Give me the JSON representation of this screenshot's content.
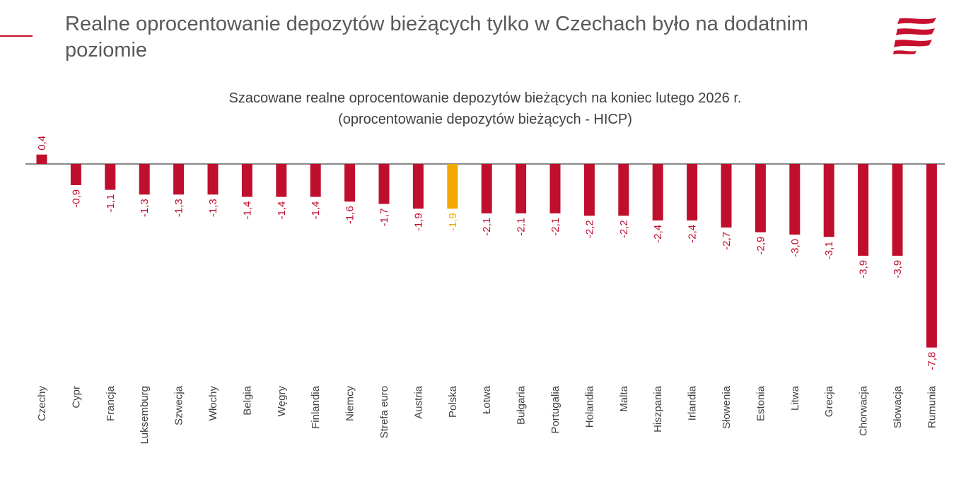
{
  "page": {
    "title": "Realne oprocentowanie depozytów bieżących tylko w Czechach było na dodatnim poziomie"
  },
  "colors": {
    "accent": "#c8102e",
    "bar": "#c00f2d",
    "highlight": "#f2a900",
    "text": "#595959"
  },
  "logo": {
    "icon": "stylized-flag-logo-icon"
  },
  "chart_data": {
    "type": "bar",
    "title": "Szacowane realne oprocentowanie depozytów bieżących na koniec lutego 2026 r.",
    "subtitle": "(oprocentowanie depozytów bieżących - HICP)",
    "categories": [
      "Czechy",
      "Cypr",
      "Francja",
      "Luksemburg",
      "Szwecja",
      "Włochy",
      "Belgia",
      "Węgry",
      "Finlandia",
      "Niemcy",
      "Strefa euro",
      "Austria",
      "Polska",
      "Łotwa",
      "Bułgaria",
      "Portugalia",
      "Holandia",
      "Malta",
      "Hiszpania",
      "Irlandia",
      "Słowenia",
      "Estonia",
      "Litwa",
      "Grecja",
      "Chorwacja",
      "Słowacja",
      "Rumunia"
    ],
    "values": [
      0.4,
      -0.9,
      -1.1,
      -1.3,
      -1.3,
      -1.3,
      -1.4,
      -1.4,
      -1.4,
      -1.6,
      -1.7,
      -1.9,
      -1.9,
      -2.1,
      -2.1,
      -2.1,
      -2.2,
      -2.2,
      -2.4,
      -2.4,
      -2.7,
      -2.9,
      -3.0,
      -3.1,
      -3.9,
      -3.9,
      -7.8
    ],
    "labels": [
      "0,4",
      "-0,9",
      "-1,1",
      "-1,3",
      "-1,3",
      "-1,3",
      "-1,4",
      "-1,4",
      "-1,4",
      "-1,6",
      "-1,7",
      "-1,9",
      "-1,9",
      "-2,1",
      "-2,1",
      "-2,1",
      "-2,2",
      "-2,2",
      "-2,4",
      "-2,4",
      "-2,7",
      "-2,9",
      "-3,0",
      "-3,1",
      "-3,9",
      "-3,9",
      "-7,8"
    ],
    "highlight_category": "Polska",
    "ylim": [
      -7.8,
      0.4
    ],
    "grid": false,
    "legend": "none"
  }
}
